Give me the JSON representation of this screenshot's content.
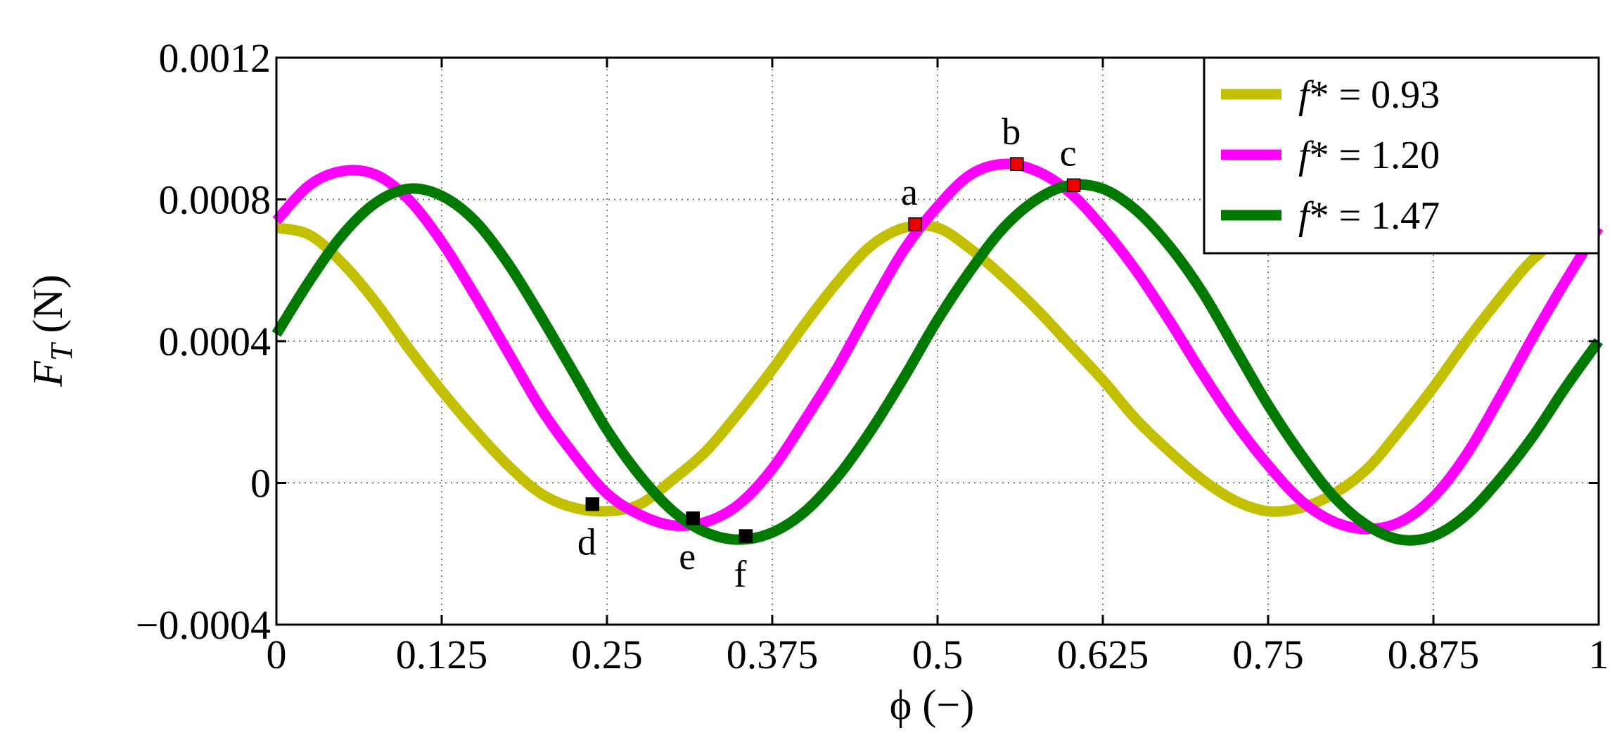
{
  "chart_data": {
    "type": "line",
    "title": "",
    "xlabel": "ϕ (−)",
    "ylabel_main": "F",
    "ylabel_sub": "T",
    "ylabel_unit": " (N)",
    "xlim": [
      0,
      1
    ],
    "ylim": [
      -0.0004,
      0.0012
    ],
    "grid": true,
    "legend_position": "top-right",
    "x_ticks": [
      0,
      0.125,
      0.25,
      0.375,
      0.5,
      0.625,
      0.75,
      0.875,
      1
    ],
    "x_tick_labels": [
      "0",
      "0.125",
      "0.25",
      "0.375",
      "0.5",
      "0.625",
      "0.75",
      "0.875",
      "1"
    ],
    "y_ticks": [
      -0.0004,
      0,
      0.0004,
      0.0008,
      0.0012
    ],
    "y_tick_labels": [
      "−0.0004",
      "0",
      "0.0004",
      "0.0008",
      "0.0012"
    ],
    "series": [
      {
        "name": "f* = 0.93",
        "legend_prefix": "f",
        "legend_suffix": "* = 0.93",
        "color": "#c2c000",
        "points": [
          [
            0,
            0.00072
          ],
          [
            0.025,
            0.0007
          ],
          [
            0.05,
            0.00062
          ],
          [
            0.075,
            0.00051
          ],
          [
            0.1,
            0.00038
          ],
          [
            0.125,
            0.00026
          ],
          [
            0.15,
            0.00015
          ],
          [
            0.175,
            5e-05
          ],
          [
            0.2,
            -3e-05
          ],
          [
            0.225,
            -7e-05
          ],
          [
            0.25,
            -8e-05
          ],
          [
            0.275,
            -6e-05
          ],
          [
            0.3,
            1e-05
          ],
          [
            0.325,
            9e-05
          ],
          [
            0.35,
            0.0002
          ],
          [
            0.375,
            0.00032
          ],
          [
            0.4,
            0.00045
          ],
          [
            0.425,
            0.00057
          ],
          [
            0.45,
            0.00067
          ],
          [
            0.475,
            0.00072
          ],
          [
            0.5,
            0.00072
          ],
          [
            0.525,
            0.00066
          ],
          [
            0.55,
            0.00058
          ],
          [
            0.575,
            0.00049
          ],
          [
            0.6,
            0.00039
          ],
          [
            0.625,
            0.00029
          ],
          [
            0.65,
            0.00018
          ],
          [
            0.675,
            9e-05
          ],
          [
            0.7,
            1e-05
          ],
          [
            0.725,
            -5e-05
          ],
          [
            0.75,
            -8e-05
          ],
          [
            0.775,
            -7e-05
          ],
          [
            0.8,
            -3e-05
          ],
          [
            0.825,
            4e-05
          ],
          [
            0.85,
            0.00015
          ],
          [
            0.875,
            0.00027
          ],
          [
            0.9,
            0.0004
          ],
          [
            0.925,
            0.00052
          ],
          [
            0.95,
            0.00063
          ],
          [
            0.975,
            0.0007
          ],
          [
            1,
            0.00072
          ]
        ]
      },
      {
        "name": "f* = 1.20",
        "legend_prefix": "f",
        "legend_suffix": "* = 1.20",
        "color": "#ff00ff",
        "points": [
          [
            0,
            0.00074
          ],
          [
            0.025,
            0.00084
          ],
          [
            0.05,
            0.00088
          ],
          [
            0.075,
            0.00087
          ],
          [
            0.1,
            0.0008
          ],
          [
            0.125,
            0.00068
          ],
          [
            0.15,
            0.00053
          ],
          [
            0.175,
            0.00037
          ],
          [
            0.2,
            0.00021
          ],
          [
            0.225,
            8e-05
          ],
          [
            0.25,
            -3e-05
          ],
          [
            0.275,
            -9e-05
          ],
          [
            0.3,
            -0.00012
          ],
          [
            0.325,
            -0.00011
          ],
          [
            0.35,
            -6e-05
          ],
          [
            0.375,
            4e-05
          ],
          [
            0.4,
            0.00018
          ],
          [
            0.425,
            0.00033
          ],
          [
            0.45,
            0.0005
          ],
          [
            0.475,
            0.00066
          ],
          [
            0.5,
            0.00078
          ],
          [
            0.525,
            0.00087
          ],
          [
            0.55,
            0.0009
          ],
          [
            0.575,
            0.00088
          ],
          [
            0.6,
            0.00082
          ],
          [
            0.625,
            0.00072
          ],
          [
            0.65,
            0.0006
          ],
          [
            0.675,
            0.00046
          ],
          [
            0.7,
            0.00031
          ],
          [
            0.725,
            0.00017
          ],
          [
            0.75,
            5e-05
          ],
          [
            0.775,
            -5e-05
          ],
          [
            0.8,
            -0.00011
          ],
          [
            0.825,
            -0.00013
          ],
          [
            0.85,
            -0.00011
          ],
          [
            0.875,
            -4e-05
          ],
          [
            0.9,
            8e-05
          ],
          [
            0.925,
            0.00024
          ],
          [
            0.95,
            0.00041
          ],
          [
            0.975,
            0.00057
          ],
          [
            1,
            0.00072
          ]
        ]
      },
      {
        "name": "f* = 1.47",
        "legend_prefix": "f",
        "legend_suffix": "* = 1.47",
        "color": "#007a00",
        "points": [
          [
            0,
            0.00042
          ],
          [
            0.025,
            0.00057
          ],
          [
            0.05,
            0.0007
          ],
          [
            0.075,
            0.00079
          ],
          [
            0.1,
            0.00083
          ],
          [
            0.125,
            0.00081
          ],
          [
            0.15,
            0.00074
          ],
          [
            0.175,
            0.00062
          ],
          [
            0.2,
            0.00047
          ],
          [
            0.225,
            0.00031
          ],
          [
            0.25,
            0.00015
          ],
          [
            0.275,
            2e-05
          ],
          [
            0.3,
            -8e-05
          ],
          [
            0.325,
            -0.00014
          ],
          [
            0.35,
            -0.00016
          ],
          [
            0.375,
            -0.00014
          ],
          [
            0.4,
            -8e-05
          ],
          [
            0.425,
            2e-05
          ],
          [
            0.45,
            0.00015
          ],
          [
            0.475,
            0.0003
          ],
          [
            0.5,
            0.00046
          ],
          [
            0.525,
            0.0006
          ],
          [
            0.55,
            0.00072
          ],
          [
            0.575,
            0.0008
          ],
          [
            0.6,
            0.00084
          ],
          [
            0.625,
            0.00083
          ],
          [
            0.65,
            0.00077
          ],
          [
            0.675,
            0.00067
          ],
          [
            0.7,
            0.00054
          ],
          [
            0.725,
            0.00038
          ],
          [
            0.75,
            0.00022
          ],
          [
            0.775,
            8e-05
          ],
          [
            0.8,
            -4e-05
          ],
          [
            0.825,
            -0.00012
          ],
          [
            0.85,
            -0.00016
          ],
          [
            0.875,
            -0.00015
          ],
          [
            0.9,
            -9e-05
          ],
          [
            0.925,
            1e-05
          ],
          [
            0.95,
            0.00013
          ],
          [
            0.975,
            0.00027
          ],
          [
            1,
            0.0004
          ]
        ]
      }
    ],
    "marked_points": [
      {
        "label": "a",
        "x": 0.483,
        "y": 0.00073,
        "color": "#ee0000",
        "label_position": "above"
      },
      {
        "label": "b",
        "x": 0.56,
        "y": 0.0009,
        "color": "#ee0000",
        "label_position": "above"
      },
      {
        "label": "c",
        "x": 0.603,
        "y": 0.00084,
        "color": "#ee0000",
        "label_position": "above"
      },
      {
        "label": "d",
        "x": 0.239,
        "y": -6e-05,
        "color": "#000000",
        "label_position": "below"
      },
      {
        "label": "e",
        "x": 0.315,
        "y": -0.0001,
        "color": "#000000",
        "label_position": "below"
      },
      {
        "label": "f",
        "x": 0.355,
        "y": -0.00015,
        "color": "#000000",
        "label_position": "below"
      }
    ]
  }
}
